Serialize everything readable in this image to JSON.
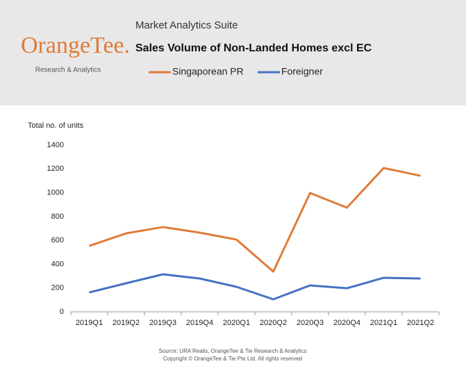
{
  "header": {
    "logo": "OrangeTee.",
    "logo_subtitle": "Research & Analytics",
    "suite": "Market Analytics Suite"
  },
  "chart_data": {
    "type": "line",
    "title": "Sales Volume of Non-Landed Homes excl EC",
    "y_label": "Total no. of units",
    "categories": [
      "2019Q1",
      "2019Q2",
      "2019Q3",
      "2019Q4",
      "2020Q1",
      "2020Q2",
      "2020Q3",
      "2020Q4",
      "2021Q1",
      "2021Q2"
    ],
    "series": [
      {
        "name": "Singaporean PR",
        "color": "#e07b39",
        "values": [
          554,
          659,
          712,
          665,
          607,
          338,
          998,
          875,
          1208,
          1143
        ]
      },
      {
        "name": "Foreigner",
        "color": "#4472c4",
        "values": [
          163,
          240,
          315,
          280,
          210,
          105,
          222,
          198,
          286,
          280
        ]
      }
    ],
    "ylim": [
      0,
      1400
    ],
    "yticks": [
      0,
      200,
      400,
      600,
      800,
      1000,
      1200,
      1400
    ],
    "grid": false
  },
  "footer": {
    "source": "Source: URA Realis, OrangeTee & Tie Research & Analytics",
    "copyright": "Copyright © OrangeTee & Tie Pte Ltd. All rights reserved"
  }
}
